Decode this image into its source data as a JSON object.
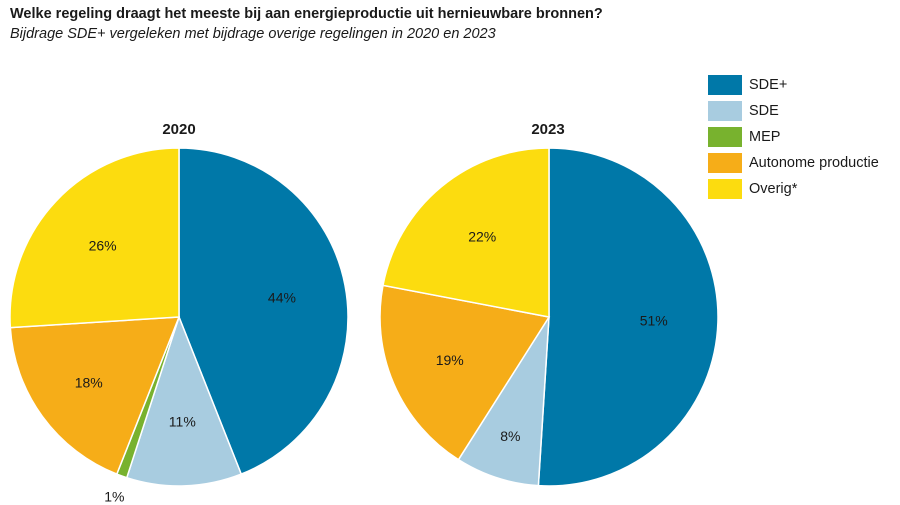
{
  "header": {
    "title": "Welke regeling draagt het meeste bij aan energieproductie uit hernieuwbare bronnen?",
    "subtitle": "Bijdrage SDE+ vergeleken met bijdrage overige regelingen in 2020 en 2023"
  },
  "legend": [
    {
      "label": "SDE+",
      "color": "#0078a8"
    },
    {
      "label": "SDE",
      "color": "#a8cce0"
    },
    {
      "label": "MEP",
      "color": "#78b22e"
    },
    {
      "label": "Autonome productie",
      "color": "#f6ad18"
    },
    {
      "label": "Overig*",
      "color": "#fcdc0f"
    }
  ],
  "chart_data": [
    {
      "type": "pie",
      "title": "2020",
      "categories": [
        "SDE+",
        "SDE",
        "MEP",
        "Autonome productie",
        "Overig*"
      ],
      "values": [
        44,
        11,
        1,
        18,
        26
      ],
      "labels": [
        "44%",
        "11%",
        "1%",
        "18%",
        "26%"
      ],
      "colors": [
        "#0078a8",
        "#a8cce0",
        "#78b22e",
        "#f6ad18",
        "#fcdc0f"
      ]
    },
    {
      "type": "pie",
      "title": "2023",
      "categories": [
        "SDE+",
        "SDE",
        "Autonome productie",
        "Overig*"
      ],
      "values": [
        51,
        8,
        19,
        22
      ],
      "labels": [
        "51%",
        "8%",
        "19%",
        "22%"
      ],
      "colors": [
        "#0078a8",
        "#a8cce0",
        "#f6ad18",
        "#fcdc0f"
      ]
    }
  ]
}
